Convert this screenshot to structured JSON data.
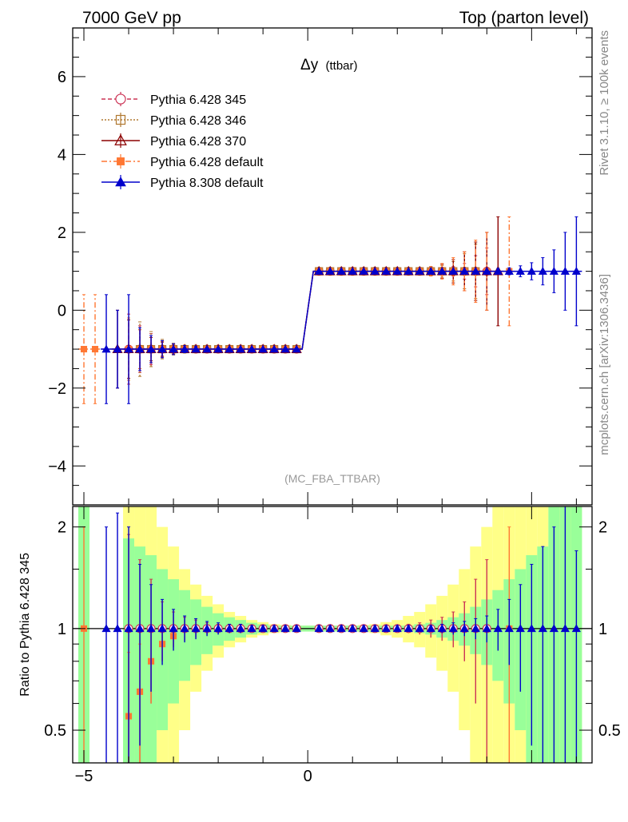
{
  "header": {
    "left": "7000 GeV pp",
    "right": "Top (parton level)"
  },
  "side_labels": {
    "rivet": "Rivet 3.1.10, ≥ 100k events",
    "mcplots": "mcplots.cern.ch [arXiv:1306.3436]"
  },
  "chart_data": [
    {
      "type": "line",
      "panel": "main",
      "title": "Δy (ttbar)",
      "title_main": "Δy",
      "title_sub": "(ttbar)",
      "watermark": "(MC_FBA_TTBAR)",
      "xlabel": "",
      "ylabel": "",
      "xlim": [
        -5.25,
        6.35
      ],
      "ylim": [
        -5.0,
        7.25
      ],
      "yticks": [
        -4,
        -2,
        0,
        2,
        4,
        6
      ],
      "yticklabels": [
        "−4",
        "−2",
        "0",
        "2",
        "4",
        "6"
      ],
      "grid": false,
      "legend_position": "top-left",
      "series": [
        {
          "name": "Pythia 6.428 345",
          "color": "#cc3355",
          "style": "dashed",
          "marker": "open-circle",
          "x": [
            -4.0,
            -3.75,
            -3.5,
            -3.25,
            -3.0,
            -2.75,
            -2.5,
            -2.25,
            -2.0,
            -1.75,
            -1.5,
            -1.25,
            -1.0,
            -0.75,
            -0.5,
            -0.25,
            0.25,
            0.5,
            0.75,
            1.0,
            1.25,
            1.5,
            1.75,
            2.0,
            2.25,
            2.5,
            2.75,
            3.0,
            3.25,
            3.5,
            3.75,
            4.0
          ],
          "y": [
            -1,
            -1,
            -1,
            -1,
            -1,
            -1,
            -1,
            -1,
            -1,
            -1,
            -1,
            -1,
            -1,
            -1,
            -1,
            -1,
            1,
            1,
            1,
            1,
            1,
            1,
            1,
            1,
            1,
            1,
            1,
            1,
            1,
            1,
            1,
            1
          ],
          "yerr": [
            0.9,
            0.6,
            0.4,
            0.2,
            0.12,
            0.08,
            0.06,
            0.04,
            0.03,
            0.02,
            0.02,
            0.02,
            0.02,
            0.02,
            0.02,
            0.02,
            0.02,
            0.02,
            0.02,
            0.02,
            0.02,
            0.02,
            0.02,
            0.02,
            0.03,
            0.04,
            0.06,
            0.08,
            0.12,
            0.2,
            0.4,
            0.6
          ]
        },
        {
          "name": "Pythia 6.428 346",
          "color": "#b07830",
          "style": "dotted",
          "marker": "open-square",
          "x": [
            -3.75,
            -3.5,
            -3.25,
            -3.0,
            -2.75,
            -2.5,
            -2.25,
            -2.0,
            -1.75,
            -1.5,
            -1.25,
            -1.0,
            -0.75,
            -0.5,
            -0.25,
            0.25,
            0.5,
            0.75,
            1.0,
            1.25,
            1.5,
            1.75,
            2.0,
            2.25,
            2.5,
            2.75,
            3.0,
            3.25,
            3.5,
            3.75
          ],
          "y": [
            -1,
            -1,
            -1,
            -1,
            -1,
            -1,
            -1,
            -1,
            -1,
            -1,
            -1,
            -1,
            -1,
            -1,
            -1,
            1,
            1,
            1,
            1,
            1,
            1,
            1,
            1,
            1,
            1,
            1,
            1,
            1,
            1,
            1
          ],
          "yerr": [
            0.7,
            0.45,
            0.25,
            0.15,
            0.1,
            0.07,
            0.05,
            0.04,
            0.03,
            0.02,
            0.02,
            0.02,
            0.02,
            0.02,
            0.02,
            0.02,
            0.02,
            0.02,
            0.02,
            0.02,
            0.02,
            0.03,
            0.04,
            0.05,
            0.07,
            0.1,
            0.15,
            0.25,
            0.45,
            0.7
          ]
        },
        {
          "name": "Pythia 6.428 370",
          "color": "#8b0000",
          "style": "solid",
          "marker": "open-triangle",
          "x": [
            -4.25,
            -4.0,
            -3.75,
            -3.5,
            -3.25,
            -3.0,
            -2.75,
            -2.5,
            -2.25,
            -2.0,
            -1.75,
            -1.5,
            -1.25,
            -1.0,
            -0.75,
            -0.5,
            -0.25,
            0.25,
            0.5,
            0.75,
            1.0,
            1.25,
            1.5,
            1.75,
            2.0,
            2.25,
            2.5,
            2.75,
            3.0,
            3.25,
            3.5,
            3.75,
            4.0,
            4.25
          ],
          "y": [
            -1,
            -1,
            -1,
            -1,
            -1,
            -1,
            -1,
            -1,
            -1,
            -1,
            -1,
            -1,
            -1,
            -1,
            -1,
            -1,
            -1,
            1,
            1,
            1,
            1,
            1,
            1,
            1,
            1,
            1,
            1,
            1,
            1,
            1,
            1,
            1,
            1,
            1
          ],
          "yerr": [
            1.0,
            0.75,
            0.5,
            0.3,
            0.18,
            0.12,
            0.08,
            0.06,
            0.05,
            0.04,
            0.03,
            0.02,
            0.02,
            0.02,
            0.02,
            0.02,
            0.02,
            0.02,
            0.02,
            0.02,
            0.02,
            0.02,
            0.03,
            0.04,
            0.05,
            0.06,
            0.08,
            0.12,
            0.18,
            0.3,
            0.5,
            0.75,
            1.0,
            1.4
          ]
        },
        {
          "name": "Pythia 6.428 default",
          "color": "#ff7733",
          "style": "dashdot",
          "marker": "filled-square",
          "x": [
            -5.0,
            -4.75,
            -4.0,
            -3.75,
            -3.5,
            -3.25,
            -3.0,
            -2.75,
            -2.5,
            -2.25,
            -2.0,
            -1.75,
            -1.5,
            -1.25,
            -1.0,
            -0.75,
            -0.5,
            -0.25,
            0.25,
            0.5,
            0.75,
            1.0,
            1.25,
            1.5,
            1.75,
            2.0,
            2.25,
            2.5,
            2.75,
            3.0,
            3.25,
            3.5,
            3.75,
            4.0,
            4.5
          ],
          "y": [
            -1,
            -1,
            -1,
            -1,
            -1,
            -1,
            -1,
            -1,
            -1,
            -1,
            -1,
            -1,
            -1,
            -1,
            -1,
            -1,
            -1,
            -1,
            1,
            1,
            1,
            1,
            1,
            1,
            1,
            1,
            1,
            1,
            1,
            1,
            1,
            1,
            1,
            1,
            1
          ],
          "yerr": [
            1.4,
            1.4,
            0.8,
            0.5,
            0.35,
            0.2,
            0.12,
            0.08,
            0.06,
            0.05,
            0.04,
            0.03,
            0.02,
            0.02,
            0.02,
            0.02,
            0.02,
            0.02,
            0.02,
            0.02,
            0.02,
            0.02,
            0.02,
            0.03,
            0.04,
            0.05,
            0.06,
            0.08,
            0.12,
            0.2,
            0.35,
            0.5,
            0.8,
            1.0,
            1.4
          ]
        },
        {
          "name": "Pythia 8.308 default",
          "color": "#0000cc",
          "style": "solid",
          "marker": "filled-triangle",
          "x": [
            -4.5,
            -4.25,
            -4.0,
            -3.75,
            -3.5,
            -3.25,
            -3.0,
            -2.75,
            -2.5,
            -2.25,
            -2.0,
            -1.75,
            -1.5,
            -1.25,
            -1.0,
            -0.75,
            -0.5,
            -0.25,
            0.25,
            0.5,
            0.75,
            1.0,
            1.25,
            1.5,
            1.75,
            2.0,
            2.25,
            2.5,
            2.75,
            3.0,
            3.25,
            3.5,
            3.75,
            4.0,
            4.25,
            4.5,
            4.75,
            5.0,
            5.25,
            5.5,
            5.75,
            6.0
          ],
          "y": [
            -1,
            -1,
            -1,
            -1,
            -1,
            -1,
            -1,
            -1,
            -1,
            -1,
            -1,
            -1,
            -1,
            -1,
            -1,
            -1,
            -1,
            -1,
            1,
            1,
            1,
            1,
            1,
            1,
            1,
            1,
            1,
            1,
            1,
            1,
            1,
            1,
            1,
            1,
            1,
            1,
            1,
            1,
            1,
            1,
            1,
            1
          ],
          "yerr": [
            1.4,
            1.0,
            1.4,
            0.55,
            0.35,
            0.22,
            0.14,
            0.09,
            0.07,
            0.05,
            0.04,
            0.03,
            0.03,
            0.02,
            0.02,
            0.02,
            0.02,
            0.02,
            0.02,
            0.02,
            0.02,
            0.02,
            0.02,
            0.02,
            0.02,
            0.02,
            0.02,
            0.02,
            0.02,
            0.02,
            0.02,
            0.03,
            0.04,
            0.05,
            0.07,
            0.09,
            0.14,
            0.22,
            0.35,
            0.55,
            1.0,
            1.4
          ]
        }
      ]
    },
    {
      "type": "line",
      "panel": "ratio",
      "xlabel": "",
      "ylabel": "Ratio to Pythia 6.428 345",
      "ylim": [
        0.4,
        2.3
      ],
      "log_y": true,
      "yticks": [
        0.5,
        1,
        2
      ],
      "yticklabels": [
        "0.5",
        "1",
        "2"
      ],
      "xticks": [
        -5,
        0
      ],
      "xticklabels": [
        "−5",
        "0"
      ],
      "reference_line": 1,
      "uncertainty_bands": {
        "inner_color": "#99ff99",
        "outer_color": "#ffff88",
        "x_edges": [
          -5.125,
          -4.875,
          -4.625,
          -4.375,
          -4.125,
          -3.875,
          -3.625,
          -3.375,
          -3.125,
          -2.875,
          -2.625,
          -2.375,
          -2.125,
          -1.875,
          -1.625,
          -1.375,
          -1.125,
          -0.875,
          -0.625,
          -0.375,
          -0.125,
          0.125,
          0.375,
          0.625,
          0.875,
          1.125,
          1.375,
          1.625,
          1.875,
          2.125,
          2.375,
          2.625,
          2.875,
          3.125,
          3.375,
          3.625,
          3.875,
          4.125,
          4.375,
          4.625,
          4.875,
          5.125,
          5.375,
          5.625,
          5.875,
          6.125
        ],
        "inner_rel": [
          2.0,
          0,
          0,
          0,
          0.85,
          0.75,
          0.65,
          0.5,
          0.4,
          0.3,
          0.22,
          0.16,
          0.11,
          0.08,
          0.06,
          0.04,
          0.03,
          0.02,
          0.02,
          0.02,
          0.02,
          0.02,
          0.02,
          0.02,
          0.02,
          0.02,
          0.02,
          0.02,
          0.02,
          0.02,
          0.03,
          0.04,
          0.06,
          0.08,
          0.11,
          0.16,
          0.22,
          0.3,
          0.4,
          0.5,
          0.65,
          0.75,
          1.5,
          2.0,
          2.0
        ],
        "outer_rel": [
          2.0,
          0,
          0,
          0,
          2.0,
          1.6,
          1.4,
          1.0,
          0.75,
          0.5,
          0.35,
          0.25,
          0.18,
          0.12,
          0.09,
          0.06,
          0.045,
          0.03,
          0.025,
          0.02,
          0.02,
          0.02,
          0.02,
          0.02,
          0.02,
          0.025,
          0.03,
          0.045,
          0.06,
          0.09,
          0.12,
          0.18,
          0.25,
          0.35,
          0.5,
          0.75,
          1.0,
          1.4,
          1.6,
          2.0,
          2.0,
          2.0,
          2.0,
          2.0,
          2.0
        ]
      },
      "series": [
        {
          "name": "Pythia 6.428 345",
          "color": "#cc3355",
          "x": [
            -4.0,
            -3.75,
            -3.5,
            -3.25,
            -3.0,
            -2.75,
            -2.5,
            -2.25,
            -2.0,
            -1.75,
            -1.5,
            -1.25,
            -1.0,
            -0.75,
            -0.5,
            -0.25,
            0.25,
            0.5,
            0.75,
            1.0,
            1.25,
            1.5,
            1.75,
            2.0,
            2.25,
            2.5,
            2.75,
            3.0,
            3.25,
            3.5,
            3.75,
            4.0
          ],
          "y": [
            1,
            1,
            1,
            1,
            1,
            1,
            1,
            1,
            1,
            1,
            1,
            1,
            1,
            1,
            1,
            1,
            1,
            1,
            1,
            1,
            1,
            1,
            1,
            1,
            1,
            1,
            1,
            1,
            1,
            1,
            1,
            1
          ],
          "yerr": [
            0.9,
            0.6,
            0.4,
            0.2,
            0.12,
            0.08,
            0.06,
            0.04,
            0.03,
            0.02,
            0.02,
            0.02,
            0.02,
            0.02,
            0.02,
            0.02,
            0.02,
            0.02,
            0.02,
            0.02,
            0.02,
            0.02,
            0.02,
            0.02,
            0.03,
            0.04,
            0.06,
            0.08,
            0.12,
            0.2,
            0.4,
            0.6
          ]
        },
        {
          "name": "Pythia 6.428 default",
          "color": "#ff7733",
          "x": [
            -5.0,
            -4.0,
            -3.75,
            -3.5,
            -3.25,
            -3.0,
            4.5
          ],
          "y": [
            1,
            0.55,
            0.65,
            0.8,
            0.9,
            0.95,
            1
          ],
          "yerr": [
            1.0,
            0.3,
            0.25,
            0.2,
            0.1,
            0.06,
            1.0
          ]
        },
        {
          "name": "Pythia 8.308 default",
          "color": "#0000cc",
          "x": [
            -4.5,
            -4.25,
            -4.0,
            -3.75,
            -3.5,
            -3.25,
            -3.0,
            -2.75,
            -2.5,
            -2.25,
            -2.0,
            -1.75,
            -1.5,
            -1.25,
            -1.0,
            -0.75,
            -0.5,
            -0.25,
            0.25,
            0.5,
            0.75,
            1.0,
            1.25,
            1.5,
            1.75,
            2.0,
            2.25,
            2.5,
            2.75,
            3.0,
            3.25,
            3.5,
            3.75,
            4.0,
            4.25,
            4.5,
            4.75,
            5.0,
            5.25,
            5.5,
            5.75,
            6.0
          ],
          "y": [
            1,
            1,
            1,
            1,
            1,
            1,
            1,
            1,
            1,
            1,
            1,
            1,
            1,
            1,
            1,
            1,
            1,
            1,
            1,
            1,
            1,
            1,
            1,
            1,
            1,
            1,
            1,
            1,
            1,
            1,
            1,
            1,
            1,
            1,
            1,
            1,
            1,
            1,
            1,
            1,
            1,
            1
          ],
          "yerr": [
            1.0,
            1.2,
            1.0,
            0.55,
            0.35,
            0.22,
            0.14,
            0.09,
            0.07,
            0.05,
            0.04,
            0.03,
            0.03,
            0.02,
            0.02,
            0.02,
            0.02,
            0.02,
            0.02,
            0.02,
            0.02,
            0.02,
            0.02,
            0.02,
            0.02,
            0.02,
            0.02,
            0.02,
            0.02,
            0.03,
            0.04,
            0.05,
            0.07,
            0.09,
            0.14,
            0.22,
            0.35,
            0.55,
            0.75,
            1.0,
            1.3,
            0.7
          ]
        }
      ]
    }
  ]
}
